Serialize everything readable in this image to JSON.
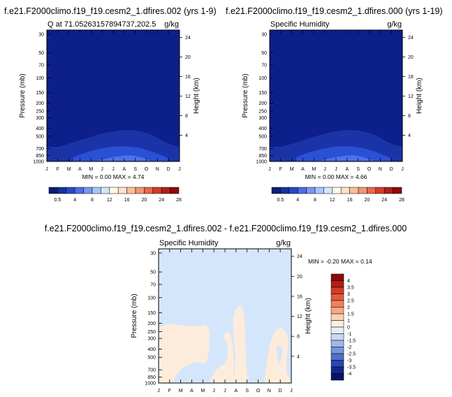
{
  "chart_data": [
    {
      "type": "heatmap",
      "title": "f.e21.F2000climo.f19_f19.cesm2_1.dfires.002 (yrs 1-9)",
      "left_label": "Q at 71.05263157894737,202.5",
      "unit": "g/kg",
      "xlabel": "",
      "ylabel": "Pressure (mb)",
      "y2label": "Height (km)",
      "x_ticks": [
        "J",
        "F",
        "M",
        "A",
        "M",
        "J",
        "J",
        "A",
        "S",
        "O",
        "N",
        "D",
        "J"
      ],
      "y_ticks": [
        "30",
        "50",
        "70",
        "100",
        "150",
        "200",
        "250",
        "300",
        "400",
        "500",
        "700",
        "850",
        "1000"
      ],
      "y2_ticks": [
        "24",
        "20",
        "16",
        "12",
        "8",
        "4"
      ],
      "min_max": "MIN =  0.00 MAX =  4.74",
      "colorbar": [
        "0.5",
        "4",
        "8",
        "12",
        "16",
        "20",
        "24",
        "28"
      ],
      "note": "Values near 0 above ~500 mb; 1-4.7 g/kg near surface, peaking Jul-Aug"
    },
    {
      "type": "heatmap",
      "title": "f.e21.F2000climo.f19_f19.cesm2_1.dfires.000 (yrs 1-19)",
      "left_label": "Specific Humidity",
      "unit": "g/kg",
      "xlabel": "",
      "ylabel": "Pressure (mb)",
      "y2label": "Height (km)",
      "x_ticks": [
        "J",
        "F",
        "M",
        "A",
        "M",
        "J",
        "J",
        "A",
        "S",
        "O",
        "N",
        "D",
        "J"
      ],
      "y_ticks": [
        "30",
        "50",
        "70",
        "100",
        "150",
        "200",
        "250",
        "300",
        "400",
        "500",
        "700",
        "850",
        "1000"
      ],
      "y2_ticks": [
        "24",
        "20",
        "16",
        "12",
        "8",
        "4"
      ],
      "min_max": "MIN =  0.00 MAX =  4.66",
      "colorbar": [
        "0.5",
        "4",
        "8",
        "12",
        "16",
        "20",
        "24",
        "28"
      ]
    },
    {
      "type": "heatmap",
      "title": "f.e21.F2000climo.f19_f19.cesm2_1.dfires.002 - f.e21.F2000climo.f19_f19.cesm2_1.dfires.000",
      "left_label": "Specific Humidity",
      "unit": "g/kg",
      "xlabel": "",
      "ylabel": "Pressure (mb)",
      "y2label": "Height (km)",
      "x_ticks": [
        "J",
        "F",
        "M",
        "A",
        "M",
        "J",
        "J",
        "A",
        "S",
        "O",
        "N",
        "D",
        "J"
      ],
      "y_ticks": [
        "30",
        "50",
        "70",
        "100",
        "150",
        "200",
        "250",
        "300",
        "400",
        "500",
        "700",
        "850",
        "1000"
      ],
      "y2_ticks": [
        "24",
        "20",
        "16",
        "12",
        "8",
        "4"
      ],
      "min_max": "MIN = -0.20 MAX =  0.14",
      "colorbar": [
        "4",
        "3.5",
        "3",
        "2.5",
        "2",
        "1.5",
        "1",
        "0",
        "-1",
        "-1.5",
        "-2",
        "-2.5",
        "-3",
        "-3.5",
        "-4"
      ]
    }
  ],
  "colors": {
    "abs_scale": [
      "#0a1e78",
      "#1432a0",
      "#2846c8",
      "#4b6ee6",
      "#7896f0",
      "#aac4f8",
      "#d2e6fc",
      "#fff8e6",
      "#fde2c8",
      "#fbbe9a",
      "#f59470",
      "#e86848",
      "#d23c28",
      "#b41e14",
      "#8c0a0a"
    ],
    "diff_scale": [
      "#8c0a0a",
      "#b41e14",
      "#d23c28",
      "#e65a3c",
      "#f0825a",
      "#f8aa82",
      "#fcd2b4",
      "#fdeee0",
      "#e6eefa",
      "#c8d8f4",
      "#a0b8ec",
      "#7896dc",
      "#5070c8",
      "#2846b4",
      "#14288c",
      "#0a1464"
    ]
  }
}
